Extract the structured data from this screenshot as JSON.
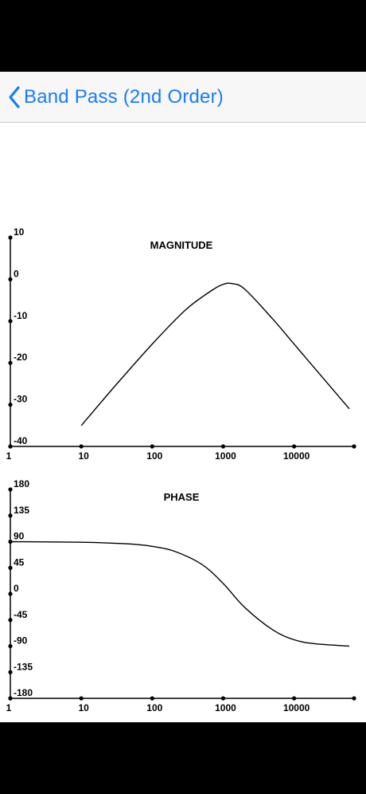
{
  "nav": {
    "back_label": "Band Pass (2nd Order)",
    "back_icon": "chevron-left-icon",
    "accent_color": "#1a7cf5"
  },
  "chart_data": [
    {
      "type": "line",
      "title": "MAGNITUDE",
      "x_scale": "log",
      "xlim": [
        1,
        70000
      ],
      "x_tick_labels": [
        "1",
        "10",
        "100",
        "1000",
        "10000"
      ],
      "x_ticks": [
        1,
        10,
        100,
        1000,
        10000
      ],
      "ylim": [
        -40,
        10
      ],
      "y_tick_labels": [
        "10",
        "0",
        "-10",
        "-20",
        "-30",
        "-40"
      ],
      "y_ticks": [
        10,
        0,
        -10,
        -20,
        -30,
        -40
      ],
      "series": [
        {
          "x": [
            10,
            30,
            100,
            300,
            700,
            1000,
            1300,
            2000,
            5000,
            10000,
            30000,
            60000
          ],
          "y": [
            -35,
            -25.5,
            -15.5,
            -7.2,
            -2.6,
            -1.2,
            -1.0,
            -2.3,
            -9.5,
            -15.5,
            -25,
            -31
          ]
        }
      ],
      "grid": false
    },
    {
      "type": "line",
      "title": "PHASE",
      "x_scale": "log",
      "xlim": [
        1,
        70000
      ],
      "x_tick_labels": [
        "1",
        "10",
        "100",
        "1000",
        "10000"
      ],
      "x_ticks": [
        1,
        10,
        100,
        1000,
        10000
      ],
      "ylim": [
        -180,
        180
      ],
      "y_tick_labels": [
        "180",
        "135",
        "90",
        "45",
        "0",
        "-45",
        "-90",
        "-135",
        "-180"
      ],
      "y_ticks": [
        180,
        135,
        90,
        45,
        0,
        -45,
        -90,
        -135,
        -180
      ],
      "series": [
        {
          "x": [
            1,
            10,
            50,
            100,
            200,
            500,
            1000,
            2000,
            5000,
            10000,
            20000,
            60000
          ],
          "y": [
            90,
            89,
            86,
            82,
            74,
            51,
            18,
            -23,
            -62,
            -79,
            -86,
            -90
          ]
        }
      ],
      "grid": false
    }
  ]
}
